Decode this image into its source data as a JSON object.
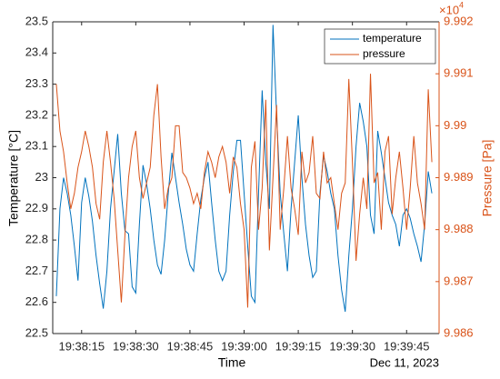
{
  "chart_data": {
    "type": "line",
    "xlabel": "Time",
    "x_date_label": "Dec 11, 2023",
    "ylabel": "Temperature [°C]",
    "y2label": "Pressure [Pa]",
    "y2_exponent_base": "×10",
    "y2_exponent": "4",
    "x": [
      "19:38:08",
      "19:38:09",
      "19:38:10",
      "19:38:11",
      "19:38:12",
      "19:38:13",
      "19:38:14",
      "19:38:15",
      "19:38:16",
      "19:38:17",
      "19:38:18",
      "19:38:19",
      "19:38:20",
      "19:38:21",
      "19:38:22",
      "19:38:23",
      "19:38:24",
      "19:38:25",
      "19:38:26",
      "19:38:27",
      "19:38:28",
      "19:38:29",
      "19:38:30",
      "19:38:31",
      "19:38:32",
      "19:38:33",
      "19:38:34",
      "19:38:35",
      "19:38:36",
      "19:38:37",
      "19:38:38",
      "19:38:39",
      "19:38:40",
      "19:38:41",
      "19:38:42",
      "19:38:43",
      "19:38:44",
      "19:38:45",
      "19:38:46",
      "19:38:47",
      "19:38:48",
      "19:38:49",
      "19:38:50",
      "19:38:51",
      "19:38:52",
      "19:38:53",
      "19:38:54",
      "19:38:55",
      "19:38:56",
      "19:38:57",
      "19:38:58",
      "19:38:59",
      "19:39:00",
      "19:39:01",
      "19:39:02",
      "19:39:03",
      "19:39:04",
      "19:39:05",
      "19:39:06",
      "19:39:07",
      "19:39:08",
      "19:39:09",
      "19:39:10",
      "19:39:11",
      "19:39:12",
      "19:39:13",
      "19:39:14",
      "19:39:15",
      "19:39:16",
      "19:39:17",
      "19:39:18",
      "19:39:19",
      "19:39:20",
      "19:39:21",
      "19:39:22",
      "19:39:23",
      "19:39:24",
      "19:39:25",
      "19:39:26",
      "19:39:27",
      "19:39:28",
      "19:39:29",
      "19:39:30",
      "19:39:31",
      "19:39:32",
      "19:39:33",
      "19:39:34",
      "19:39:35",
      "19:39:36",
      "19:39:37",
      "19:39:38",
      "19:39:39",
      "19:39:40",
      "19:39:41",
      "19:39:42",
      "19:39:43",
      "19:39:44",
      "19:39:45",
      "19:39:46",
      "19:39:47",
      "19:39:48",
      "19:39:49",
      "19:39:50",
      "19:39:51",
      "19:39:52"
    ],
    "series": [
      {
        "name": "temperature",
        "color": "#0072BD",
        "axis": "y",
        "values": [
          22.62,
          22.9,
          23.0,
          22.95,
          22.88,
          22.78,
          22.67,
          22.92,
          23.0,
          22.94,
          22.86,
          22.75,
          22.66,
          22.58,
          22.7,
          22.9,
          23.02,
          23.14,
          22.95,
          22.83,
          22.82,
          22.65,
          22.63,
          22.85,
          23.04,
          22.98,
          22.9,
          22.8,
          22.72,
          22.69,
          22.8,
          22.95,
          23.08,
          23.0,
          22.92,
          22.85,
          22.77,
          22.72,
          22.7,
          22.82,
          22.93,
          23.0,
          23.05,
          22.92,
          22.8,
          22.7,
          22.67,
          22.7,
          22.88,
          23.02,
          23.12,
          23.12,
          22.95,
          22.78,
          22.62,
          22.6,
          22.95,
          23.28,
          23.05,
          22.9,
          23.49,
          23.2,
          22.95,
          22.82,
          22.7,
          22.9,
          23.05,
          23.2,
          23.0,
          22.85,
          22.75,
          22.68,
          22.7,
          22.95,
          23.07,
          23.02,
          22.95,
          22.9,
          22.75,
          22.64,
          22.57,
          22.75,
          22.9,
          23.1,
          23.24,
          23.18,
          23.1,
          22.88,
          22.82,
          23.15,
          23.08,
          23.0,
          22.92,
          22.88,
          22.85,
          22.78,
          22.88,
          22.9,
          22.87,
          22.82,
          22.78,
          22.73,
          22.85,
          23.02,
          22.95
        ]
      },
      {
        "name": "pressure",
        "color": "#D95319",
        "axis": "y2",
        "values": [
          9.9908,
          9.9899,
          9.9895,
          9.9889,
          9.9884,
          9.9887,
          9.9892,
          9.9895,
          9.9899,
          9.9896,
          9.9892,
          9.9885,
          9.9882,
          9.9893,
          9.9899,
          9.9893,
          9.9886,
          9.9876,
          9.9866,
          9.9879,
          9.989,
          9.9896,
          9.9899,
          9.989,
          9.9886,
          9.9889,
          9.9892,
          9.9902,
          9.9908,
          9.9894,
          9.9884,
          9.9888,
          9.989,
          9.99,
          9.99,
          9.9891,
          9.989,
          9.9888,
          9.9885,
          9.9887,
          9.9884,
          9.9891,
          9.9895,
          9.9893,
          9.989,
          9.9894,
          9.9896,
          9.9893,
          9.9887,
          9.9894,
          9.9892,
          9.9885,
          9.988,
          9.9865,
          9.9892,
          9.9897,
          9.988,
          9.9888,
          9.9905,
          9.9876,
          9.989,
          9.9904,
          9.988,
          9.9888,
          9.9898,
          9.9888,
          9.9884,
          9.9879,
          9.9895,
          9.9889,
          9.9891,
          9.9898,
          9.9887,
          9.9886,
          9.9895,
          9.9889,
          9.989,
          9.9885,
          9.988,
          9.9887,
          9.9889,
          9.9909,
          9.9893,
          9.9874,
          9.9883,
          9.989,
          9.9884,
          9.991,
          9.9889,
          9.9891,
          9.988,
          9.9895,
          9.9898,
          9.9883,
          9.989,
          9.9895,
          9.9888,
          9.988,
          9.9888,
          9.9898,
          9.9889,
          9.9885,
          9.988,
          9.9907,
          9.9893
        ]
      }
    ],
    "xlim": [
      "19:38:07",
      "19:39:54"
    ],
    "xticks": [
      "19:38:15",
      "19:38:30",
      "19:38:45",
      "19:39:00",
      "19:39:15",
      "19:39:30",
      "19:39:45"
    ],
    "ylim": [
      22.5,
      23.5
    ],
    "yticks": [
      22.5,
      22.6,
      22.7,
      22.8,
      22.9,
      23,
      23.1,
      23.2,
      23.3,
      23.4,
      23.5
    ],
    "y2lim": [
      9.986,
      9.992
    ],
    "y2ticks": [
      9.986,
      9.987,
      9.988,
      9.989,
      9.99,
      9.991,
      9.992
    ],
    "legend": "upper right"
  }
}
